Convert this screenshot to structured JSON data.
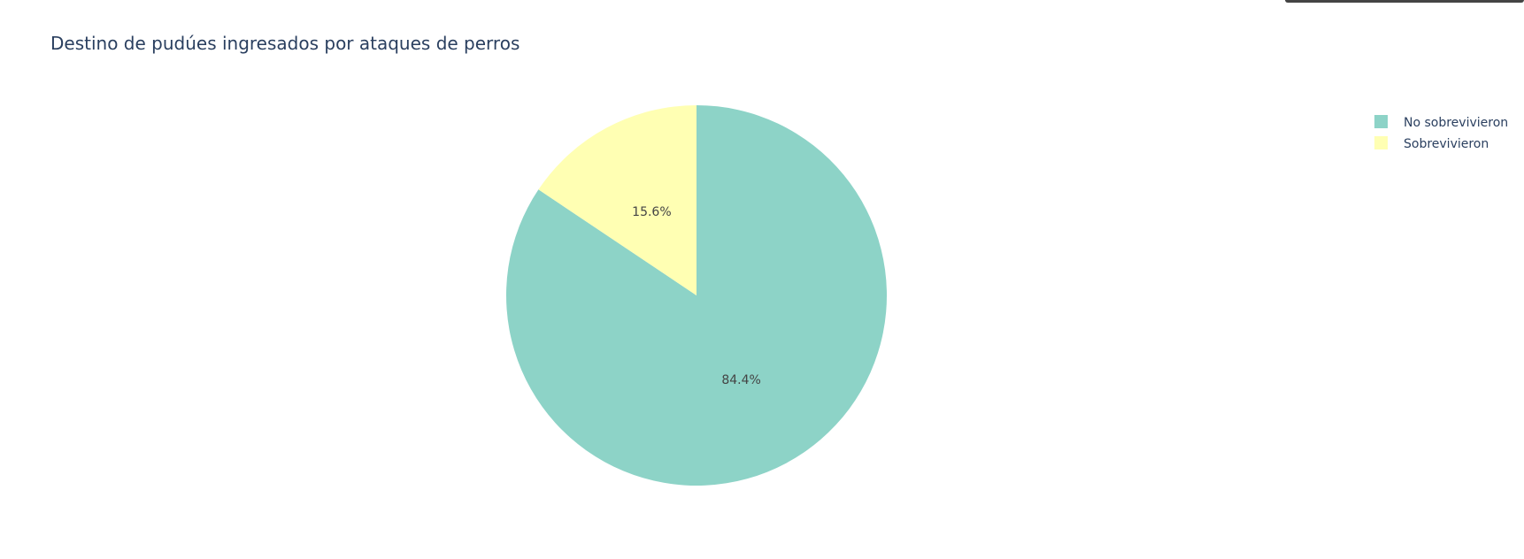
{
  "chart_data": {
    "type": "pie",
    "title": "Destino de pudúes ingresados por ataques de perros",
    "slices": [
      {
        "label": "No sobrevivieron",
        "value": 84.4,
        "text": "84.4%",
        "color": "#8dd3c7"
      },
      {
        "label": "Sobrevivieron",
        "value": 15.6,
        "text": "15.6%",
        "color": "#ffffb3"
      }
    ],
    "legend": {
      "position": "top-right",
      "entries": [
        "No sobrevivieron",
        "Sobrevivieron"
      ]
    }
  }
}
